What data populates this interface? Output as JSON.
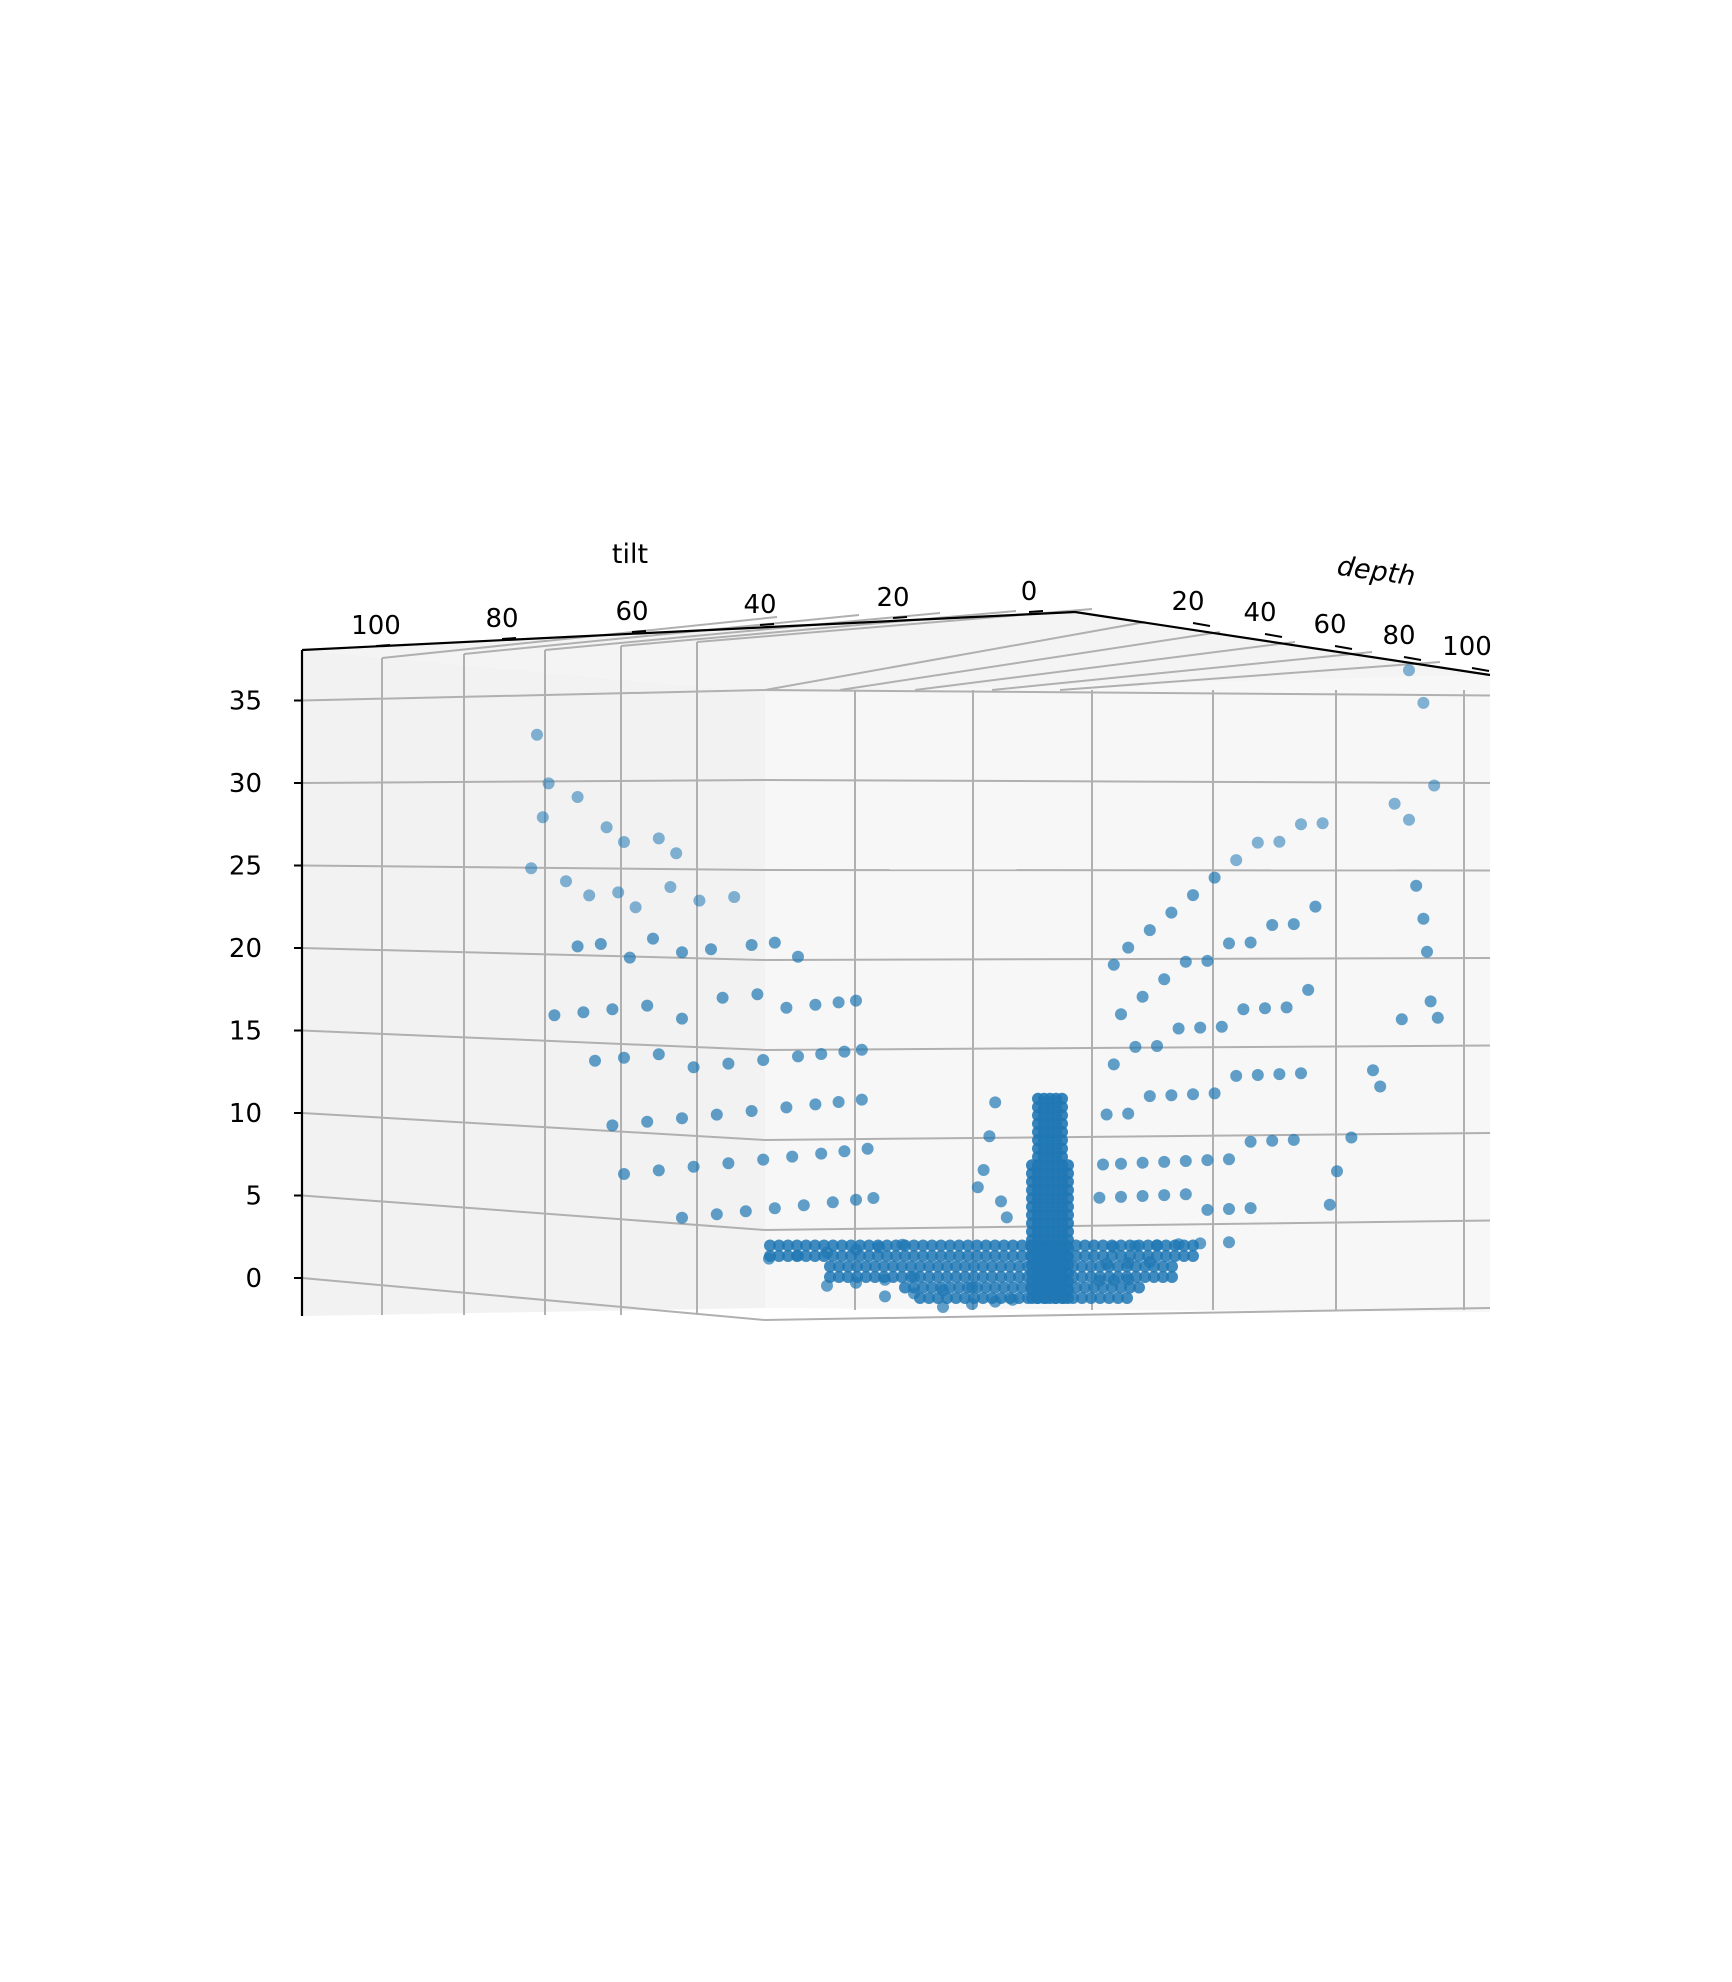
{
  "chart_data": {
    "type": "scatter",
    "projection": "3d",
    "title": "",
    "xlabel": "tilt",
    "ylabel": "depth",
    "zlabel": "",
    "xlim": [
      0,
      100
    ],
    "ylim": [
      0,
      100
    ],
    "zlim": [
      0,
      38
    ],
    "x_ticks": [
      "100",
      "80",
      "60",
      "40",
      "20",
      "0"
    ],
    "y_ticks": [
      "20",
      "40",
      "60",
      "80",
      "100"
    ],
    "z_ticks": [
      "0",
      "5",
      "10",
      "15",
      "20",
      "25",
      "30",
      "35"
    ],
    "grid": true,
    "legend": "none",
    "colors": {
      "marker": "#1f77b4",
      "pane_left": "#f2f2f2",
      "pane_back": "#f7f7f7",
      "grid": "#b0b0b0"
    },
    "series": [
      {
        "description": "point cloud z = f(tilt, depth); values are approximate reads of a dense 3D scatter",
        "points_xyz": [
          [
            85,
            0,
            37
          ],
          [
            83,
            0,
            34
          ],
          [
            84,
            0,
            32
          ],
          [
            78,
            0,
            33
          ],
          [
            73,
            0,
            31
          ],
          [
            70,
            0,
            30
          ],
          [
            64,
            0,
            30
          ],
          [
            61,
            0,
            29
          ],
          [
            86,
            0,
            29
          ],
          [
            80,
            0,
            28
          ],
          [
            76,
            0,
            27
          ],
          [
            71,
            0,
            27
          ],
          [
            68,
            0,
            26
          ],
          [
            62,
            0,
            27
          ],
          [
            57,
            0,
            26
          ],
          [
            51,
            0,
            26
          ],
          [
            78,
            0,
            24
          ],
          [
            74,
            0,
            24
          ],
          [
            69,
            0,
            23
          ],
          [
            65,
            0,
            24
          ],
          [
            60,
            0,
            23
          ],
          [
            55,
            0,
            23
          ],
          [
            48,
            0,
            23
          ],
          [
            44,
            0,
            23
          ],
          [
            40,
            0,
            22
          ],
          [
            82,
            0,
            20
          ],
          [
            77,
            0,
            20
          ],
          [
            72,
            0,
            20
          ],
          [
            66,
            0,
            20
          ],
          [
            60,
            0,
            19
          ],
          [
            53,
            0,
            20
          ],
          [
            47,
            0,
            20
          ],
          [
            42,
            0,
            19
          ],
          [
            37,
            0,
            19
          ],
          [
            33,
            0,
            19
          ],
          [
            30,
            0,
            19
          ],
          [
            75,
            0,
            17
          ],
          [
            70,
            0,
            17
          ],
          [
            64,
            0,
            17
          ],
          [
            58,
            0,
            16
          ],
          [
            52,
            0,
            16
          ],
          [
            46,
            0,
            16
          ],
          [
            40,
            0,
            16
          ],
          [
            36,
            0,
            16
          ],
          [
            32,
            0,
            16
          ],
          [
            29,
            0,
            16
          ],
          [
            72,
            0,
            13
          ],
          [
            66,
            0,
            13
          ],
          [
            60,
            0,
            13
          ],
          [
            54,
            0,
            13
          ],
          [
            48,
            0,
            13
          ],
          [
            42,
            0,
            13
          ],
          [
            37,
            0,
            13
          ],
          [
            33,
            0,
            13
          ],
          [
            29,
            0,
            13
          ],
          [
            70,
            0,
            10
          ],
          [
            64,
            0,
            10
          ],
          [
            58,
            0,
            10
          ],
          [
            52,
            0,
            10
          ],
          [
            46,
            0,
            10
          ],
          [
            41,
            0,
            10
          ],
          [
            36,
            0,
            10
          ],
          [
            32,
            0,
            10
          ],
          [
            28,
            0,
            10
          ],
          [
            60,
            0,
            7
          ],
          [
            54,
            0,
            7
          ],
          [
            49,
            0,
            7
          ],
          [
            44,
            0,
            7
          ],
          [
            39,
            0,
            7
          ],
          [
            34,
            0,
            7
          ],
          [
            30,
            0,
            7
          ],
          [
            27,
            0,
            7
          ],
          [
            45,
            0,
            4
          ],
          [
            40,
            0,
            4
          ],
          [
            35,
            0,
            4
          ],
          [
            30,
            0,
            4
          ],
          [
            26,
            0,
            4
          ],
          [
            22,
            0,
            4
          ],
          [
            35,
            0,
            2
          ],
          [
            30,
            0,
            2
          ],
          [
            25,
            0,
            2
          ],
          [
            20,
            0,
            2
          ],
          [
            25,
            0,
            1
          ],
          [
            20,
            0,
            1
          ],
          [
            15,
            0,
            1
          ],
          [
            10,
            0,
            1
          ],
          [
            15,
            0,
            0
          ],
          [
            10,
            0,
            0
          ],
          [
            6,
            0,
            0
          ],
          [
            3,
            0,
            0
          ],
          [
            8,
            0,
            8
          ],
          [
            7,
            0,
            10
          ],
          [
            6,
            0,
            12
          ],
          [
            9,
            0,
            7
          ],
          [
            5,
            0,
            6
          ],
          [
            4,
            0,
            5
          ],
          [
            0,
            8,
            20
          ],
          [
            0,
            12,
            21
          ],
          [
            0,
            18,
            22
          ],
          [
            0,
            24,
            23
          ],
          [
            0,
            30,
            24
          ],
          [
            0,
            36,
            25
          ],
          [
            0,
            42,
            26
          ],
          [
            0,
            48,
            27
          ],
          [
            0,
            54,
            27
          ],
          [
            0,
            60,
            28
          ],
          [
            0,
            66,
            28
          ],
          [
            0,
            10,
            17
          ],
          [
            0,
            16,
            18
          ],
          [
            0,
            22,
            19
          ],
          [
            0,
            28,
            20
          ],
          [
            0,
            34,
            20
          ],
          [
            0,
            40,
            21
          ],
          [
            0,
            46,
            21
          ],
          [
            0,
            52,
            22
          ],
          [
            0,
            58,
            22
          ],
          [
            0,
            64,
            23
          ],
          [
            0,
            8,
            14
          ],
          [
            0,
            14,
            15
          ],
          [
            0,
            20,
            15
          ],
          [
            0,
            26,
            16
          ],
          [
            0,
            32,
            16
          ],
          [
            0,
            38,
            16
          ],
          [
            0,
            44,
            17
          ],
          [
            0,
            50,
            17
          ],
          [
            0,
            56,
            17
          ],
          [
            0,
            62,
            18
          ],
          [
            0,
            6,
            11
          ],
          [
            0,
            12,
            11
          ],
          [
            0,
            18,
            12
          ],
          [
            0,
            24,
            12
          ],
          [
            0,
            30,
            12
          ],
          [
            0,
            36,
            12
          ],
          [
            0,
            42,
            13
          ],
          [
            0,
            48,
            13
          ],
          [
            0,
            54,
            13
          ],
          [
            0,
            60,
            13
          ],
          [
            0,
            5,
            8
          ],
          [
            0,
            10,
            8
          ],
          [
            0,
            16,
            8
          ],
          [
            0,
            22,
            8
          ],
          [
            0,
            28,
            8
          ],
          [
            0,
            34,
            8
          ],
          [
            0,
            40,
            8
          ],
          [
            0,
            46,
            9
          ],
          [
            0,
            52,
            9
          ],
          [
            0,
            58,
            9
          ],
          [
            0,
            4,
            6
          ],
          [
            0,
            10,
            6
          ],
          [
            0,
            16,
            6
          ],
          [
            0,
            22,
            6
          ],
          [
            0,
            28,
            6
          ],
          [
            0,
            34,
            5
          ],
          [
            0,
            40,
            5
          ],
          [
            0,
            46,
            5
          ],
          [
            0,
            8,
            3
          ],
          [
            0,
            14,
            3
          ],
          [
            0,
            20,
            3
          ],
          [
            0,
            26,
            3
          ],
          [
            0,
            32,
            3
          ],
          [
            0,
            40,
            3
          ],
          [
            0,
            6,
            2
          ],
          [
            0,
            12,
            2
          ],
          [
            0,
            18,
            2
          ],
          [
            0,
            4,
            1
          ],
          [
            0,
            8,
            1
          ],
          [
            0,
            12,
            1
          ],
          [
            0,
            90,
            37
          ],
          [
            0,
            94,
            35
          ],
          [
            0,
            97,
            30
          ],
          [
            0,
            86,
            29
          ],
          [
            0,
            90,
            28
          ],
          [
            0,
            92,
            24
          ],
          [
            0,
            94,
            22
          ],
          [
            0,
            95,
            20
          ],
          [
            0,
            96,
            17
          ],
          [
            0,
            88,
            16
          ],
          [
            0,
            98,
            16
          ],
          [
            0,
            80,
            13
          ],
          [
            0,
            82,
            12
          ],
          [
            0,
            74,
            9
          ],
          [
            0,
            70,
            7
          ],
          [
            0,
            68,
            5
          ]
        ]
      }
    ]
  }
}
